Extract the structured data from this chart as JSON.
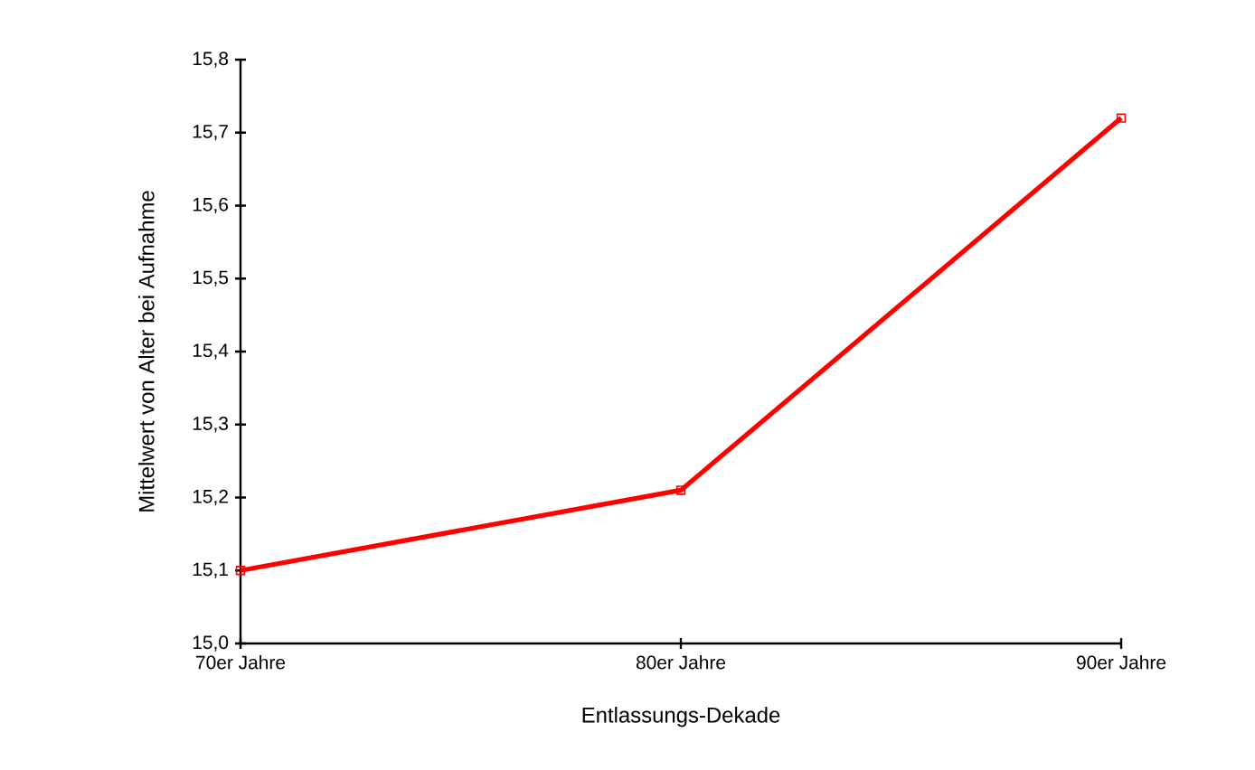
{
  "chart_data": {
    "type": "line",
    "xlabel": "Entlassungs-Dekade",
    "ylabel": "Mittelwert von Alter bei Aufnahme",
    "categories": [
      "70er Jahre",
      "80er Jahre",
      "90er Jahre"
    ],
    "series": [
      {
        "color": "#ff0000",
        "values": [
          15.1,
          15.21,
          15.72
        ]
      }
    ],
    "ylim": [
      15.0,
      15.8
    ],
    "yticks": [
      {
        "value": 15.0,
        "label": "15,0"
      },
      {
        "value": 15.1,
        "label": "15,1"
      },
      {
        "value": 15.2,
        "label": "15,2"
      },
      {
        "value": 15.3,
        "label": "15,3"
      },
      {
        "value": 15.4,
        "label": "15,4"
      },
      {
        "value": 15.5,
        "label": "15,5"
      },
      {
        "value": 15.6,
        "label": "15,6"
      },
      {
        "value": 15.7,
        "label": "15,7"
      },
      {
        "value": 15.8,
        "label": "15,8"
      }
    ],
    "marker": "square",
    "line_style": "solid",
    "grid": false
  }
}
